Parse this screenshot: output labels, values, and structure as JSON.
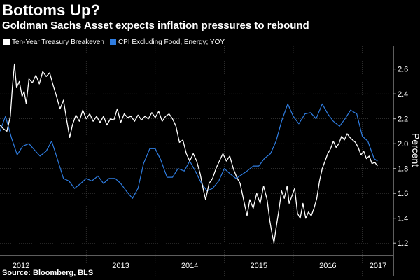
{
  "title": "Bottoms Up?",
  "subtitle": "Goldman Sachs Asset expects inflation pressures to rebound",
  "source": "Source: Bloomberg, BLS",
  "colors": {
    "background": "#000000",
    "series_white": "#ffffff",
    "series_blue": "#2f7de1"
  },
  "chart_data": {
    "type": "line",
    "ylabel": "Percent",
    "ylim": [
      1.1,
      2.75
    ],
    "xlim": [
      2011.75,
      2017.45
    ],
    "yticks": [
      "1.2",
      "1.4",
      "1.6",
      "1.8",
      "2.0",
      "2.2",
      "2.4",
      "2.6"
    ],
    "xcategories": [
      "2012",
      "2013",
      "2014",
      "2015",
      "2016",
      "2017"
    ],
    "grid": true,
    "legend_position": "top-left",
    "series": [
      {
        "name": "Ten-Year Treasury Breakeven",
        "color": "#ffffff",
        "points": [
          [
            2011.75,
            2.15
          ],
          [
            2011.8,
            2.12
          ],
          [
            2011.85,
            2.1
          ],
          [
            2011.9,
            2.22
          ],
          [
            2011.93,
            2.45
          ],
          [
            2011.96,
            2.64
          ],
          [
            2011.99,
            2.45
          ],
          [
            2012.03,
            2.5
          ],
          [
            2012.07,
            2.38
          ],
          [
            2012.1,
            2.42
          ],
          [
            2012.13,
            2.32
          ],
          [
            2012.17,
            2.52
          ],
          [
            2012.22,
            2.49
          ],
          [
            2012.27,
            2.55
          ],
          [
            2012.32,
            2.48
          ],
          [
            2012.37,
            2.58
          ],
          [
            2012.42,
            2.54
          ],
          [
            2012.47,
            2.57
          ],
          [
            2012.52,
            2.47
          ],
          [
            2012.57,
            2.38
          ],
          [
            2012.62,
            2.28
          ],
          [
            2012.67,
            2.35
          ],
          [
            2012.72,
            2.18
          ],
          [
            2012.76,
            2.05
          ],
          [
            2012.8,
            2.15
          ],
          [
            2012.85,
            2.23
          ],
          [
            2012.9,
            2.18
          ],
          [
            2012.95,
            2.27
          ],
          [
            2013.0,
            2.2
          ],
          [
            2013.05,
            2.24
          ],
          [
            2013.1,
            2.18
          ],
          [
            2013.15,
            2.22
          ],
          [
            2013.2,
            2.17
          ],
          [
            2013.25,
            2.22
          ],
          [
            2013.3,
            2.15
          ],
          [
            2013.35,
            2.2
          ],
          [
            2013.4,
            2.19
          ],
          [
            2013.45,
            2.28
          ],
          [
            2013.5,
            2.17
          ],
          [
            2013.55,
            2.24
          ],
          [
            2013.6,
            2.21
          ],
          [
            2013.65,
            2.22
          ],
          [
            2013.7,
            2.18
          ],
          [
            2013.75,
            2.23
          ],
          [
            2013.8,
            2.19
          ],
          [
            2013.85,
            2.22
          ],
          [
            2013.9,
            2.2
          ],
          [
            2013.95,
            2.25
          ],
          [
            2014.0,
            2.21
          ],
          [
            2014.05,
            2.26
          ],
          [
            2014.1,
            2.18
          ],
          [
            2014.15,
            2.22
          ],
          [
            2014.2,
            2.24
          ],
          [
            2014.25,
            2.2
          ],
          [
            2014.3,
            2.14
          ],
          [
            2014.35,
            2.01
          ],
          [
            2014.4,
            2.03
          ],
          [
            2014.45,
            1.92
          ],
          [
            2014.5,
            1.86
          ],
          [
            2014.55,
            1.92
          ],
          [
            2014.6,
            1.86
          ],
          [
            2014.65,
            1.76
          ],
          [
            2014.7,
            1.62
          ],
          [
            2014.73,
            1.55
          ],
          [
            2014.78,
            1.68
          ],
          [
            2014.83,
            1.72
          ],
          [
            2014.88,
            1.8
          ],
          [
            2014.93,
            1.86
          ],
          [
            2014.98,
            1.92
          ],
          [
            2015.03,
            1.86
          ],
          [
            2015.08,
            1.9
          ],
          [
            2015.13,
            1.8
          ],
          [
            2015.18,
            1.73
          ],
          [
            2015.23,
            1.68
          ],
          [
            2015.28,
            1.55
          ],
          [
            2015.33,
            1.42
          ],
          [
            2015.37,
            1.55
          ],
          [
            2015.42,
            1.48
          ],
          [
            2015.47,
            1.6
          ],
          [
            2015.52,
            1.52
          ],
          [
            2015.57,
            1.66
          ],
          [
            2015.62,
            1.55
          ],
          [
            2015.66,
            1.38
          ],
          [
            2015.69,
            1.28
          ],
          [
            2015.72,
            1.2
          ],
          [
            2015.75,
            1.32
          ],
          [
            2015.79,
            1.46
          ],
          [
            2015.83,
            1.62
          ],
          [
            2015.87,
            1.56
          ],
          [
            2015.91,
            1.66
          ],
          [
            2015.94,
            1.52
          ],
          [
            2015.98,
            1.58
          ],
          [
            2016.02,
            1.64
          ],
          [
            2016.06,
            1.44
          ],
          [
            2016.1,
            1.4
          ],
          [
            2016.14,
            1.52
          ],
          [
            2016.18,
            1.4
          ],
          [
            2016.22,
            1.45
          ],
          [
            2016.26,
            1.42
          ],
          [
            2016.3,
            1.48
          ],
          [
            2016.34,
            1.56
          ],
          [
            2016.38,
            1.7
          ],
          [
            2016.42,
            1.8
          ],
          [
            2016.46,
            1.86
          ],
          [
            2016.5,
            1.92
          ],
          [
            2016.54,
            1.96
          ],
          [
            2016.58,
            2.02
          ],
          [
            2016.62,
            1.97
          ],
          [
            2016.66,
            2.0
          ],
          [
            2016.7,
            2.06
          ],
          [
            2016.74,
            2.03
          ],
          [
            2016.78,
            2.08
          ],
          [
            2016.82,
            2.05
          ],
          [
            2016.86,
            2.03
          ],
          [
            2016.9,
            2.01
          ],
          [
            2016.94,
            1.97
          ],
          [
            2016.98,
            1.91
          ],
          [
            2017.02,
            1.94
          ],
          [
            2017.06,
            1.88
          ],
          [
            2017.1,
            1.9
          ],
          [
            2017.14,
            1.84
          ],
          [
            2017.18,
            1.85
          ],
          [
            2017.22,
            1.82
          ]
        ]
      },
      {
        "name": "CPI Excluding Food, Energy; YOY",
        "color": "#2f7de1",
        "points": [
          [
            2011.75,
            2.1
          ],
          [
            2011.83,
            2.22
          ],
          [
            2011.92,
            2.04
          ],
          [
            2012.0,
            1.91
          ],
          [
            2012.08,
            1.98
          ],
          [
            2012.17,
            2.0
          ],
          [
            2012.25,
            1.95
          ],
          [
            2012.33,
            1.9
          ],
          [
            2012.42,
            1.94
          ],
          [
            2012.5,
            2.02
          ],
          [
            2012.58,
            1.88
          ],
          [
            2012.67,
            1.72
          ],
          [
            2012.75,
            1.7
          ],
          [
            2012.83,
            1.64
          ],
          [
            2012.92,
            1.68
          ],
          [
            2013.0,
            1.72
          ],
          [
            2013.08,
            1.7
          ],
          [
            2013.17,
            1.74
          ],
          [
            2013.25,
            1.68
          ],
          [
            2013.33,
            1.72
          ],
          [
            2013.42,
            1.72
          ],
          [
            2013.5,
            1.68
          ],
          [
            2013.58,
            1.62
          ],
          [
            2013.67,
            1.56
          ],
          [
            2013.75,
            1.64
          ],
          [
            2013.83,
            1.84
          ],
          [
            2013.92,
            1.96
          ],
          [
            2014.0,
            1.96
          ],
          [
            2014.08,
            1.87
          ],
          [
            2014.17,
            1.73
          ],
          [
            2014.25,
            1.73
          ],
          [
            2014.33,
            1.8
          ],
          [
            2014.42,
            1.78
          ],
          [
            2014.5,
            1.86
          ],
          [
            2014.58,
            1.78
          ],
          [
            2014.67,
            1.68
          ],
          [
            2014.75,
            1.62
          ],
          [
            2014.83,
            1.64
          ],
          [
            2014.92,
            1.7
          ],
          [
            2015.0,
            1.8
          ],
          [
            2015.08,
            1.76
          ],
          [
            2015.17,
            1.72
          ],
          [
            2015.25,
            1.75
          ],
          [
            2015.33,
            1.78
          ],
          [
            2015.42,
            1.82
          ],
          [
            2015.5,
            1.82
          ],
          [
            2015.58,
            1.88
          ],
          [
            2015.67,
            1.92
          ],
          [
            2015.75,
            2.02
          ],
          [
            2015.83,
            2.18
          ],
          [
            2015.92,
            2.32
          ],
          [
            2016.0,
            2.22
          ],
          [
            2016.08,
            2.16
          ],
          [
            2016.17,
            2.24
          ],
          [
            2016.25,
            2.25
          ],
          [
            2016.33,
            2.2
          ],
          [
            2016.42,
            2.32
          ],
          [
            2016.5,
            2.24
          ],
          [
            2016.58,
            2.18
          ],
          [
            2016.67,
            2.14
          ],
          [
            2016.75,
            2.2
          ],
          [
            2016.83,
            2.27
          ],
          [
            2016.92,
            2.24
          ],
          [
            2017.0,
            2.06
          ],
          [
            2017.08,
            2.02
          ],
          [
            2017.17,
            1.88
          ],
          [
            2017.22,
            1.86
          ]
        ]
      }
    ]
  }
}
